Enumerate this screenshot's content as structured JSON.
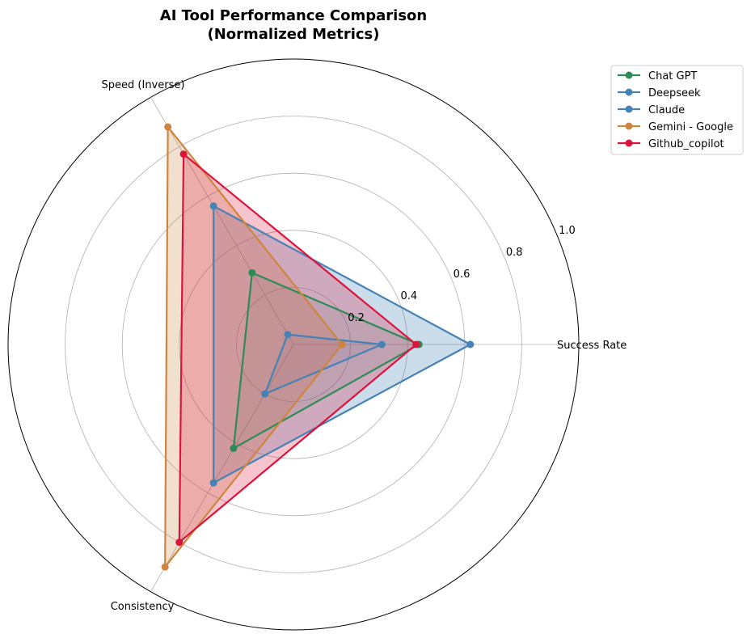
{
  "chart_data": {
    "type": "radar",
    "title_lines": [
      "AI Tool Performance Comparison",
      "(Normalized Metrics)"
    ],
    "axes": [
      "Success Rate",
      "Speed (Inverse)",
      "Consistency"
    ],
    "rlim": [
      0,
      1.0
    ],
    "rticks": [
      0.2,
      0.4,
      0.6,
      0.8,
      1.0
    ],
    "rtick_labels": [
      "0.2",
      "0.4",
      "0.6",
      "0.8",
      "1.0"
    ],
    "grid": true,
    "legend_position": "top-right",
    "series": [
      {
        "name": "Chat GPT",
        "values": [
          0.44,
          0.29,
          0.42
        ],
        "color": "#2e8b57",
        "fill": "#2e8b57",
        "fill_opacity": 0.12
      },
      {
        "name": "Deepseek",
        "values": [
          0.62,
          0.56,
          0.56
        ],
        "color": "#4682b4",
        "fill": "#4682b4",
        "fill_opacity": 0.28
      },
      {
        "name": "Claude",
        "values": [
          0.31,
          0.04,
          0.2
        ],
        "color": "#4682b4",
        "fill": "#4682b4",
        "fill_opacity": 0.12
      },
      {
        "name": "Gemini - Google",
        "values": [
          0.17,
          0.88,
          0.9
        ],
        "color": "#cd853f",
        "fill": "#cd853f",
        "fill_opacity": 0.25
      },
      {
        "name": "Github_copilot",
        "values": [
          0.43,
          0.77,
          0.8
        ],
        "color": "#dc143c",
        "fill": "#dc143c",
        "fill_opacity": 0.25
      }
    ]
  }
}
